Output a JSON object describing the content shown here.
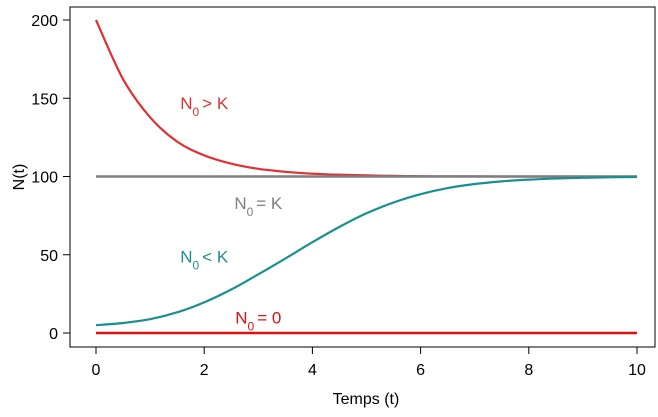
{
  "chart_data": {
    "type": "line",
    "title": "",
    "xlabel": "Temps (t)",
    "ylabel": "N(t)",
    "xlim": [
      0,
      10
    ],
    "ylim": [
      0,
      200
    ],
    "xticks": [
      0,
      2,
      4,
      6,
      8,
      10
    ],
    "yticks": [
      0,
      50,
      100,
      150,
      200
    ],
    "grid": false,
    "legend": "none",
    "series": [
      {
        "color": "#e03030",
        "x": [
          0,
          0.5,
          1,
          1.5,
          2,
          2.5,
          3,
          3.5,
          4,
          4.5,
          5,
          5.5,
          6,
          6.5,
          7,
          7.5,
          8,
          8.5,
          9,
          9.5,
          10
        ],
        "y": [
          200,
          162.2,
          137.8,
          122.3,
          113.5,
          108.2,
          104.9,
          103.0,
          101.8,
          101.1,
          100.7,
          100.4,
          100.2,
          100.1,
          100.1,
          100.0,
          100.0,
          100.0,
          100.0,
          100.0,
          100.0
        ]
      },
      {
        "color": "#7f7f7f",
        "x": [
          0,
          10
        ],
        "y": [
          100,
          100
        ]
      },
      {
        "color": "#1a8f8f",
        "x": [
          0,
          0.5,
          1,
          1.5,
          2,
          2.5,
          3,
          3.5,
          4,
          4.5,
          5,
          5.5,
          6,
          6.5,
          7,
          7.5,
          8,
          8.5,
          9,
          9.5,
          10
        ],
        "y": [
          5,
          6.4,
          8.8,
          13.2,
          19.6,
          27.8,
          37.5,
          47.6,
          58.0,
          67.8,
          76.5,
          83.4,
          88.7,
          92.6,
          95.2,
          96.9,
          98.0,
          98.7,
          99.2,
          99.5,
          99.7
        ]
      },
      {
        "color": "#e01010",
        "x": [
          0,
          10
        ],
        "y": [
          0,
          0
        ]
      }
    ],
    "annotations": [
      {
        "base": "N",
        "sub": "0",
        "rel": "> K",
        "color": "#e03030",
        "x": 2.0,
        "y": 147
      },
      {
        "base": "N",
        "sub": "0",
        "rel": "= K",
        "color": "#7f7f7f",
        "x": 3.0,
        "y": 83
      },
      {
        "base": "N",
        "sub": "0",
        "rel": "< K",
        "color": "#1a8f8f",
        "x": 2.0,
        "y": 49
      },
      {
        "base": "N",
        "sub": "0",
        "rel": "= 0",
        "color": "#e01010",
        "x": 3.0,
        "y": 10
      }
    ]
  }
}
